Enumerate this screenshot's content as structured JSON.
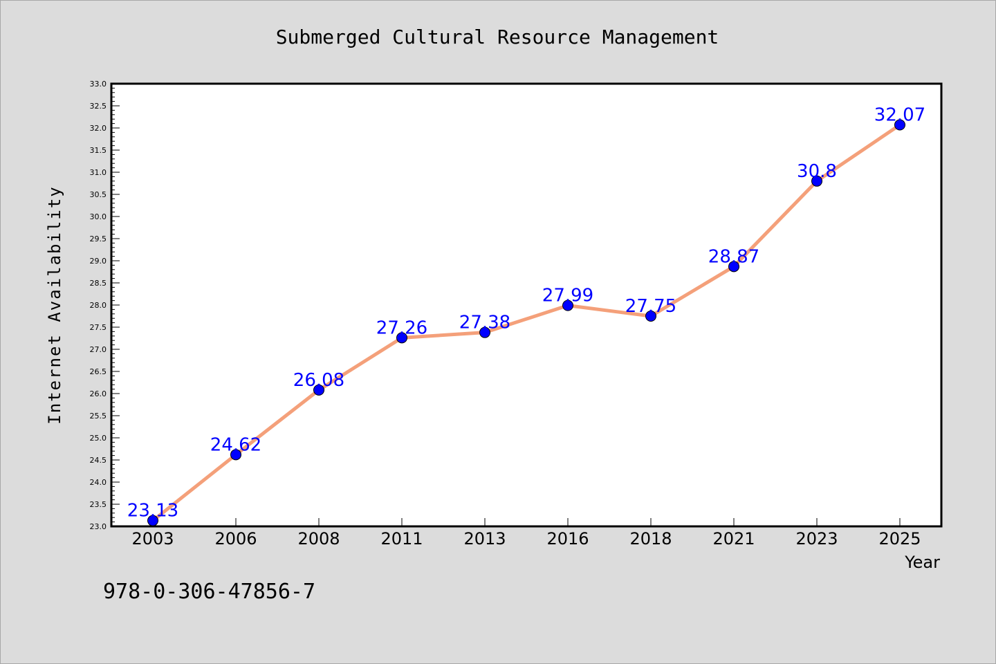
{
  "chart_data": {
    "type": "line",
    "title": "Submerged Cultural Resource Management",
    "xlabel": "Year",
    "ylabel": "Internet Availability",
    "categories": [
      "2003",
      "2006",
      "2008",
      "2011",
      "2013",
      "2016",
      "2018",
      "2021",
      "2023",
      "2025"
    ],
    "series": [
      {
        "values": [
          23.13,
          24.62,
          26.08,
          27.26,
          27.38,
          27.99,
          27.75,
          28.87,
          30.8,
          32.07
        ],
        "line_color": "#f4a07a",
        "marker_color": "#0000ff"
      }
    ],
    "data_labels": [
      "23.13",
      "24.62",
      "26.08",
      "27.26",
      "27.38",
      "27.99",
      "27.75",
      "28.87",
      "30.8",
      "32.07"
    ],
    "ylim": [
      23.0,
      33.0
    ],
    "yticks": [
      "23.0",
      "23.5",
      "24.0",
      "24.5",
      "25.0",
      "25.5",
      "26.0",
      "26.5",
      "27.0",
      "27.5",
      "28.0",
      "28.5",
      "29.0",
      "29.5",
      "30.0",
      "30.5",
      "31.0",
      "31.5",
      "32.0",
      "32.5",
      "33.0"
    ],
    "grid": false,
    "legend": "none",
    "background": "#dcdcdc",
    "plot_background": "#ffffff"
  },
  "footnote": "978-0-306-47856-7"
}
